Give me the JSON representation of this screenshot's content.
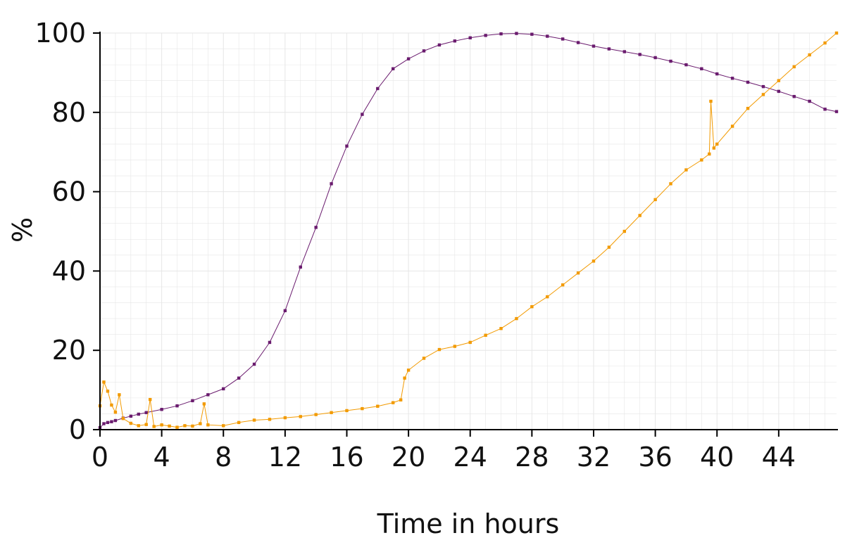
{
  "chart_data": {
    "type": "line",
    "title": "",
    "xlabel": "Time in hours",
    "ylabel": "%",
    "xlim": [
      0,
      47.75
    ],
    "ylim": [
      0,
      100
    ],
    "x_ticks": [
      0,
      4,
      8,
      12,
      16,
      20,
      24,
      28,
      32,
      36,
      40,
      44
    ],
    "y_ticks": [
      0,
      20,
      40,
      60,
      80,
      100
    ],
    "grid": true,
    "legend": "none",
    "colors": {
      "purple_series": "#6a1b6e",
      "orange_series": "#f29a00",
      "grid": "#e6e6e6",
      "axis": "#000000"
    },
    "series": [
      {
        "values": [
          [
            0.0,
            0.5
          ],
          [
            0.25,
            1.5
          ],
          [
            0.5,
            1.8
          ],
          [
            0.75,
            2.0
          ],
          [
            1.0,
            2.3
          ],
          [
            1.5,
            2.9
          ],
          [
            2.0,
            3.4
          ],
          [
            2.5,
            3.9
          ],
          [
            3.0,
            4.3
          ],
          [
            4.0,
            5.1
          ],
          [
            5.0,
            6.0
          ],
          [
            6.0,
            7.3
          ],
          [
            7.0,
            8.8
          ],
          [
            8.0,
            10.3
          ],
          [
            9.0,
            13.0
          ],
          [
            10.0,
            16.5
          ],
          [
            11.0,
            22.0
          ],
          [
            12.0,
            30.0
          ],
          [
            13.0,
            41.0
          ],
          [
            14.0,
            51.0
          ],
          [
            15.0,
            62.0
          ],
          [
            16.0,
            71.5
          ],
          [
            17.0,
            79.5
          ],
          [
            18.0,
            86.0
          ],
          [
            19.0,
            91.0
          ],
          [
            20.0,
            93.5
          ],
          [
            21.0,
            95.5
          ],
          [
            22.0,
            97.0
          ],
          [
            23.0,
            98.0
          ],
          [
            24.0,
            98.8
          ],
          [
            25.0,
            99.4
          ],
          [
            26.0,
            99.8
          ],
          [
            27.0,
            99.9
          ],
          [
            28.0,
            99.7
          ],
          [
            29.0,
            99.2
          ],
          [
            30.0,
            98.5
          ],
          [
            31.0,
            97.6
          ],
          [
            32.0,
            96.7
          ],
          [
            33.0,
            96.0
          ],
          [
            34.0,
            95.3
          ],
          [
            35.0,
            94.6
          ],
          [
            36.0,
            93.8
          ],
          [
            37.0,
            92.9
          ],
          [
            38.0,
            92.0
          ],
          [
            39.0,
            91.0
          ],
          [
            40.0,
            89.7
          ],
          [
            41.0,
            88.6
          ],
          [
            42.0,
            87.6
          ],
          [
            43.0,
            86.5
          ],
          [
            44.0,
            85.3
          ],
          [
            45.0,
            84.0
          ],
          [
            46.0,
            82.8
          ],
          [
            47.0,
            80.8
          ],
          [
            47.75,
            80.2
          ]
        ]
      },
      {
        "values": [
          [
            0.0,
            6.0
          ],
          [
            0.25,
            12.0
          ],
          [
            0.5,
            9.7
          ],
          [
            0.75,
            6.2
          ],
          [
            1.0,
            4.4
          ],
          [
            1.25,
            8.8
          ],
          [
            1.5,
            2.8
          ],
          [
            2.0,
            1.6
          ],
          [
            2.5,
            1.0
          ],
          [
            3.0,
            1.3
          ],
          [
            3.25,
            7.6
          ],
          [
            3.5,
            0.8
          ],
          [
            4.0,
            1.2
          ],
          [
            4.5,
            0.9
          ],
          [
            5.0,
            0.6
          ],
          [
            5.5,
            1.0
          ],
          [
            6.0,
            0.9
          ],
          [
            6.5,
            1.5
          ],
          [
            6.75,
            6.5
          ],
          [
            7.0,
            1.2
          ],
          [
            8.0,
            1.0
          ],
          [
            9.0,
            1.8
          ],
          [
            10.0,
            2.4
          ],
          [
            11.0,
            2.6
          ],
          [
            12.0,
            3.0
          ],
          [
            13.0,
            3.3
          ],
          [
            14.0,
            3.8
          ],
          [
            15.0,
            4.3
          ],
          [
            16.0,
            4.8
          ],
          [
            17.0,
            5.3
          ],
          [
            18.0,
            5.9
          ],
          [
            19.0,
            6.8
          ],
          [
            19.5,
            7.5
          ],
          [
            19.75,
            13.0
          ],
          [
            20.0,
            15.0
          ],
          [
            21.0,
            18.0
          ],
          [
            22.0,
            20.2
          ],
          [
            23.0,
            21.0
          ],
          [
            24.0,
            22.0
          ],
          [
            25.0,
            23.8
          ],
          [
            26.0,
            25.5
          ],
          [
            27.0,
            28.0
          ],
          [
            28.0,
            31.0
          ],
          [
            29.0,
            33.5
          ],
          [
            30.0,
            36.5
          ],
          [
            31.0,
            39.5
          ],
          [
            32.0,
            42.5
          ],
          [
            33.0,
            46.0
          ],
          [
            34.0,
            50.0
          ],
          [
            35.0,
            54.0
          ],
          [
            36.0,
            58.0
          ],
          [
            37.0,
            62.0
          ],
          [
            38.0,
            65.5
          ],
          [
            39.0,
            68.0
          ],
          [
            39.5,
            69.5
          ],
          [
            39.6,
            82.8
          ],
          [
            39.8,
            71.0
          ],
          [
            40.0,
            72.0
          ],
          [
            41.0,
            76.5
          ],
          [
            42.0,
            81.0
          ],
          [
            43.0,
            84.5
          ],
          [
            44.0,
            88.0
          ],
          [
            45.0,
            91.5
          ],
          [
            46.0,
            94.5
          ],
          [
            47.0,
            97.5
          ],
          [
            47.75,
            100.0
          ]
        ]
      }
    ]
  }
}
